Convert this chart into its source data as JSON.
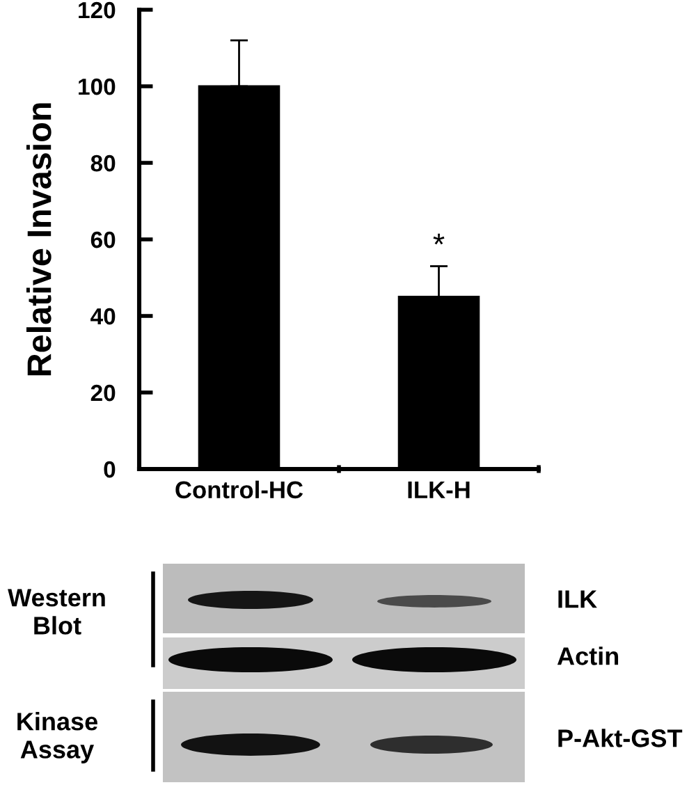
{
  "chart_data": {
    "type": "bar",
    "ylabel": "Relative Invasion",
    "categories": [
      "Control-HC",
      "ILK-H"
    ],
    "values": [
      100,
      45
    ],
    "errors": [
      [
        100,
        112
      ],
      [
        45,
        53
      ]
    ],
    "color": "#000000",
    "ylim": [
      0,
      120
    ],
    "yticks": [
      0,
      20,
      40,
      60,
      80,
      100,
      120
    ],
    "annotations": [
      {
        "text": "*",
        "x": "ILK-H",
        "y": 53
      },
      "Western\nBlot",
      "Kinase\nAssay",
      "ILK",
      "Actin",
      "P-Akt-GST"
    ]
  }
}
